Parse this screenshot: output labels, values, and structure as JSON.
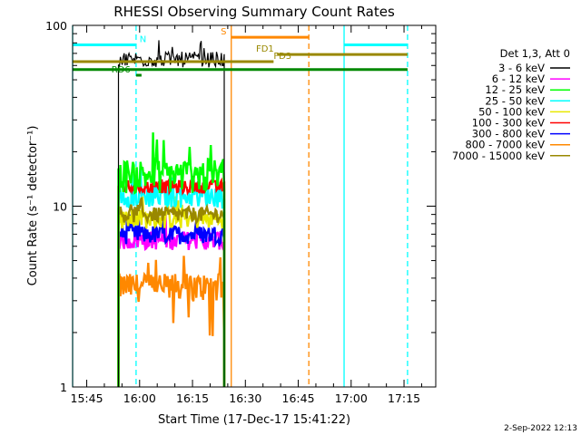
{
  "chart_data": {
    "type": "line",
    "title": "RHESSI Observing Summary Count Rates",
    "xlabel": "Start Time (17-Dec-17 15:41:22)",
    "ylabel": "Count Rate (s⁻¹ detector⁻¹)",
    "x_scale": "time",
    "y_scale": "log",
    "xlim": [
      "15:41",
      "17:24"
    ],
    "ylim": [
      1,
      100
    ],
    "x_ticks": [
      "15:45",
      "16:00",
      "16:15",
      "16:30",
      "16:45",
      "17:00",
      "17:15"
    ],
    "y_ticks": [
      "1",
      "10",
      "100"
    ],
    "legend_title": "Det 1,3, Att 0",
    "legend_position": "right",
    "series": [
      {
        "name": "3 - 6 keV",
        "color": "#000000",
        "level": 65,
        "var": 0.1
      },
      {
        "name": "6 - 12 keV",
        "color": "#ff00ff",
        "level": 6.5,
        "var": 0.12
      },
      {
        "name": "12 - 25 keV",
        "color": "#00ff00",
        "level": 15,
        "var": 0.22
      },
      {
        "name": "25 - 50 keV",
        "color": "#00ffff",
        "level": 11.5,
        "var": 0.15
      },
      {
        "name": "50 - 100 keV",
        "color": "#e8e800",
        "level": 8.5,
        "var": 0.12
      },
      {
        "name": "100 - 300 keV",
        "color": "#ff0000",
        "level": 12.8,
        "var": 0.08
      },
      {
        "name": "300 - 800 keV",
        "color": "#0000ff",
        "level": 7,
        "var": 0.12
      },
      {
        "name": "800 - 7000 keV",
        "color": "#ff8800",
        "level": 3.6,
        "var": 0.18
      },
      {
        "name": "7000 - 15000 keV",
        "color": "#998800",
        "level": 9,
        "var": 0.1
      }
    ],
    "data_interval": [
      "15:54",
      "16:24"
    ],
    "flags": [
      {
        "label": "N",
        "color": "#00ffff",
        "y": 78,
        "segments": [
          [
            "15:41",
            "15:59"
          ],
          [
            "16:58",
            "17:16"
          ]
        ],
        "label_at": "16:00"
      },
      {
        "label": "S",
        "color": "#ff8800",
        "y": 86,
        "segments": [
          [
            "16:26",
            "16:48"
          ]
        ],
        "label_at": "16:23"
      },
      {
        "label": "FD1",
        "color": "#998800",
        "y": 69,
        "segments": [
          [
            "16:39",
            "17:16"
          ]
        ],
        "label_at": "16:33"
      },
      {
        "label": "FD3",
        "color": "#998800",
        "y": 63,
        "segments": [
          [
            "15:41",
            "16:38"
          ]
        ],
        "label_at": "16:38"
      },
      {
        "label": "RD6",
        "color": "#008800",
        "y": 53,
        "segments": [
          [
            "15:59",
            "15:59"
          ]
        ],
        "label_at": "15:52"
      },
      {
        "label": "",
        "color": "#008800",
        "y": 57,
        "segments": [
          [
            "15:41",
            "17:16"
          ]
        ],
        "label_at": ""
      }
    ],
    "vlines": [
      {
        "t": "15:41",
        "color": "#00ffff",
        "dash": false
      },
      {
        "t": "15:59",
        "color": "#00ffff",
        "dash": true
      },
      {
        "t": "16:26",
        "color": "#ff8800",
        "dash": false
      },
      {
        "t": "16:48",
        "color": "#ff8800",
        "dash": true
      },
      {
        "t": "16:58",
        "color": "#00ffff",
        "dash": false
      },
      {
        "t": "17:16",
        "color": "#00ffff",
        "dash": true
      }
    ]
  },
  "footer": {
    "date": "2-Sep-2022 12:13"
  }
}
